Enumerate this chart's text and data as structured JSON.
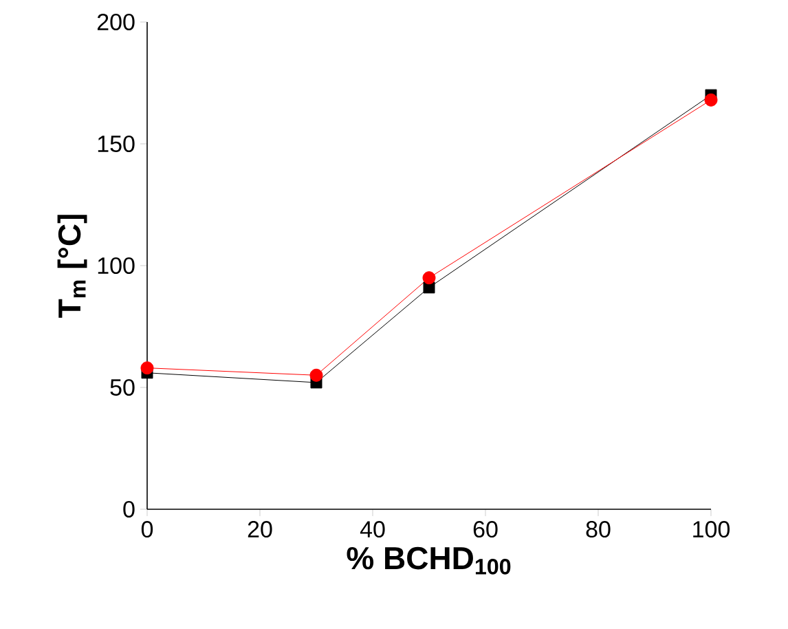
{
  "chart_data": {
    "type": "line",
    "xlabel": "% BCHD$_{100}$",
    "ylabel": "T$_{m}$ [°C]",
    "x": [
      0,
      30,
      50,
      100
    ],
    "series": [
      {
        "color": "#000000",
        "marker": "square",
        "values": [
          56,
          52,
          91,
          170
        ]
      },
      {
        "color": "#ff0000",
        "marker": "circle",
        "values": [
          58,
          55,
          95,
          168
        ]
      }
    ],
    "xlim": [
      0,
      100
    ],
    "xticks": [
      0,
      20,
      40,
      60,
      80,
      100
    ],
    "ylim": [
      0,
      200
    ],
    "yticks": [
      0,
      50,
      100,
      150,
      200
    ],
    "grid": false,
    "line_style": "solid"
  }
}
